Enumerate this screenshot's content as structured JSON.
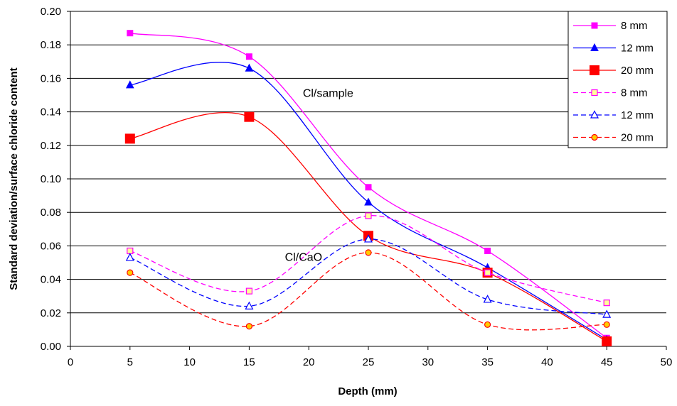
{
  "chart_data": {
    "type": "line",
    "title": "",
    "xlabel": "Depth (mm)",
    "ylabel": "Standard deviation/surface chloride content",
    "xlim": [
      0,
      50
    ],
    "ylim": [
      0,
      0.2
    ],
    "x_ticks": [
      "0",
      "5",
      "10",
      "15",
      "20",
      "25",
      "30",
      "35",
      "40",
      "45",
      "50"
    ],
    "y_ticks": [
      "0.00",
      "0.02",
      "0.04",
      "0.06",
      "0.08",
      "0.10",
      "0.12",
      "0.14",
      "0.16",
      "0.18",
      "0.20"
    ],
    "grid": "horizontal",
    "legend_position": "top-right",
    "x": [
      5,
      15,
      25,
      35,
      45
    ],
    "series": [
      {
        "name": "8 mm",
        "group": "Cl/sample",
        "values": [
          0.187,
          0.173,
          0.095,
          0.057,
          0.005
        ],
        "color": "#FF00FF",
        "dash": "solid",
        "marker": "square",
        "marker_fill": "#FF00FF"
      },
      {
        "name": "12 mm",
        "group": "Cl/sample",
        "values": [
          0.156,
          0.166,
          0.086,
          0.047,
          0.004
        ],
        "color": "#0000FF",
        "dash": "solid",
        "marker": "triangle",
        "marker_fill": "#0000FF"
      },
      {
        "name": "20 mm",
        "group": "Cl/sample",
        "values": [
          0.124,
          0.137,
          0.066,
          0.044,
          0.003
        ],
        "color": "#FF0000",
        "dash": "solid",
        "marker": "bigsquare",
        "marker_fill": "#FF0000"
      },
      {
        "name": "8 mm",
        "group": "Cl/CaO",
        "values": [
          0.057,
          0.033,
          0.078,
          0.044,
          0.026
        ],
        "color": "#FF00FF",
        "dash": "dashed",
        "marker": "square-open",
        "marker_fill": "#FFFF99"
      },
      {
        "name": "12 mm",
        "group": "Cl/CaO",
        "values": [
          0.053,
          0.024,
          0.064,
          0.028,
          0.019
        ],
        "color": "#0000FF",
        "dash": "dashed",
        "marker": "triangle-open",
        "marker_fill": "#FFFFFF"
      },
      {
        "name": "20 mm",
        "group": "Cl/CaO",
        "values": [
          0.044,
          0.012,
          0.056,
          0.013,
          0.013
        ],
        "color": "#FF0000",
        "dash": "dashed",
        "marker": "circle-open",
        "marker_fill": "#FFCC00"
      }
    ],
    "annotations": [
      {
        "text": "Cl/sample",
        "x": 19.5,
        "y": 0.149
      },
      {
        "text": "Cl/CaO",
        "x": 18,
        "y": 0.051
      }
    ]
  }
}
